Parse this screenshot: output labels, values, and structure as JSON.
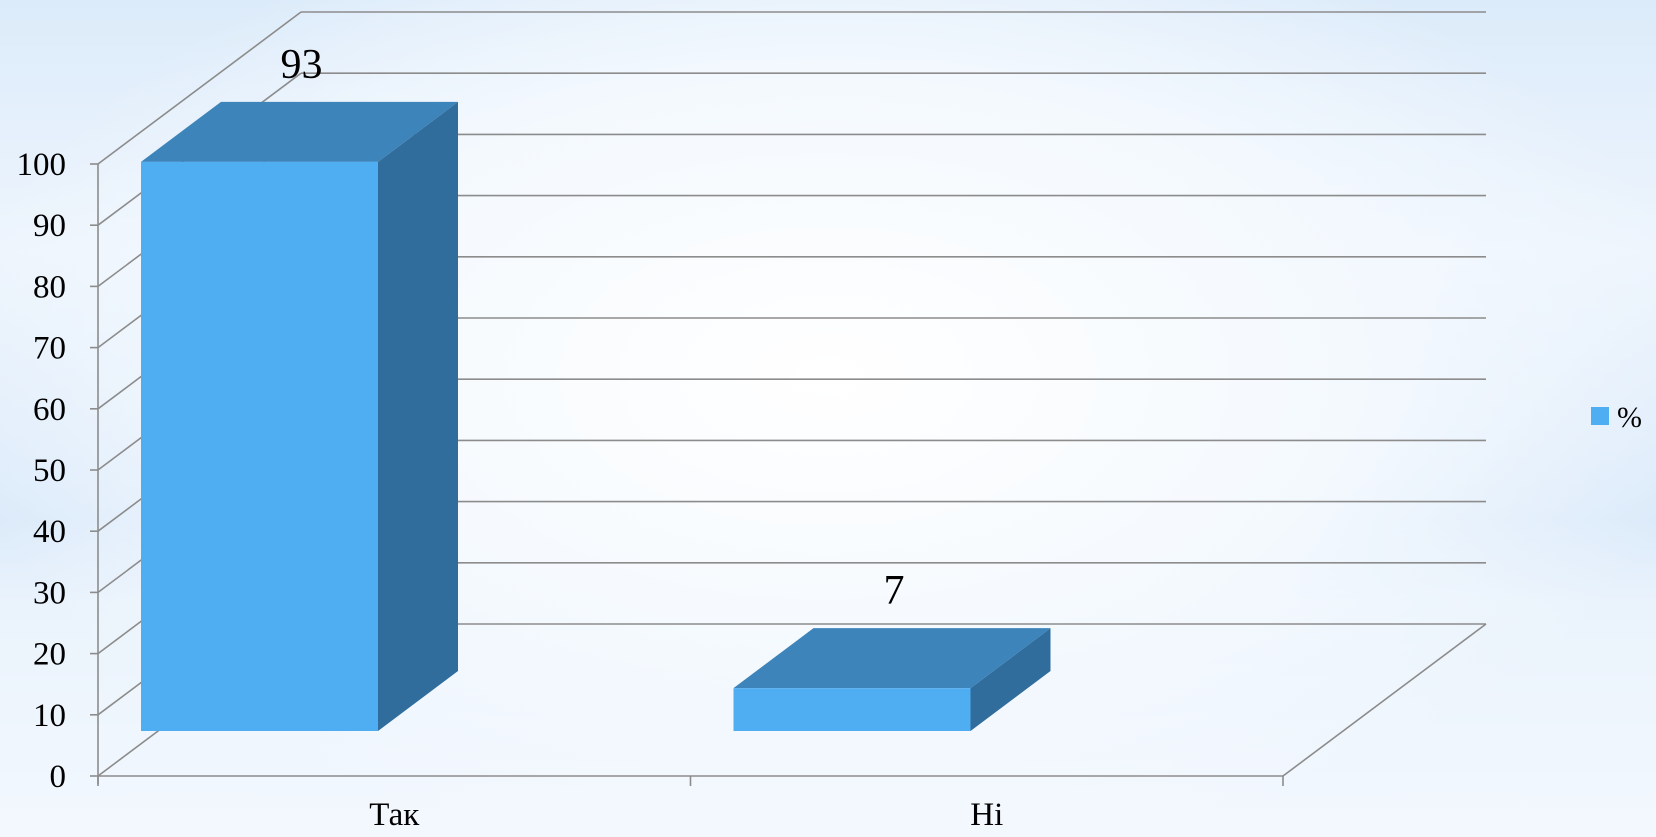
{
  "chart_data": {
    "type": "bar",
    "categories": [
      "Так",
      "Ні"
    ],
    "series": [
      {
        "name": "%",
        "values": [
          93,
          7
        ]
      }
    ],
    "data_labels": [
      "93",
      "7"
    ],
    "ylim": [
      0,
      100
    ],
    "yticks": [
      "0",
      "10",
      "20",
      "30",
      "40",
      "50",
      "60",
      "70",
      "80",
      "90",
      "100"
    ],
    "grid": true,
    "legend_position": "right",
    "style": "3d-column",
    "colors": {
      "bar_front": "#4FADF2",
      "bar_top": "#3C84BA",
      "bar_side": "#306D9C",
      "grid": "#8c8c8c"
    }
  }
}
